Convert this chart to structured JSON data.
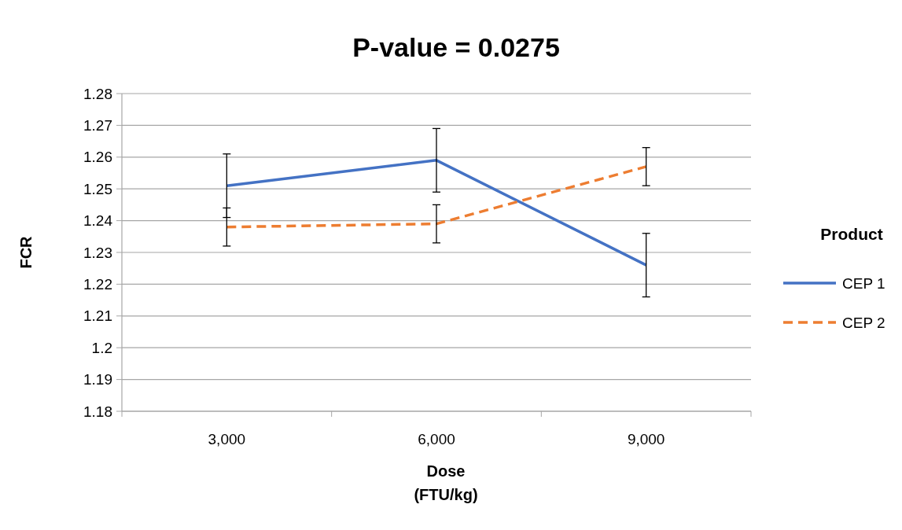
{
  "chart_data": {
    "type": "line",
    "title": "P-value = 0.0275",
    "xlabel": "Dose\n(FTU/kg)",
    "ylabel": "FCR",
    "legend_title": "Product",
    "categories": [
      "3,000",
      "6,000",
      "9,000"
    ],
    "series": [
      {
        "name": "CEP 1",
        "color": "#4472c4",
        "line_style": "solid",
        "values": [
          1.251,
          1.259,
          1.226
        ],
        "errors": [
          0.01,
          0.01,
          0.01
        ]
      },
      {
        "name": "CEP 2",
        "color": "#ed7d31",
        "line_style": "dashed",
        "values": [
          1.238,
          1.239,
          1.257
        ],
        "errors": [
          0.006,
          0.006,
          0.006
        ]
      }
    ],
    "ylim": [
      1.18,
      1.28
    ],
    "yticks": [
      1.18,
      1.19,
      1.2,
      1.21,
      1.22,
      1.23,
      1.24,
      1.25,
      1.26,
      1.27,
      1.28
    ],
    "grid": "y",
    "legend": "right",
    "marker": "none"
  }
}
